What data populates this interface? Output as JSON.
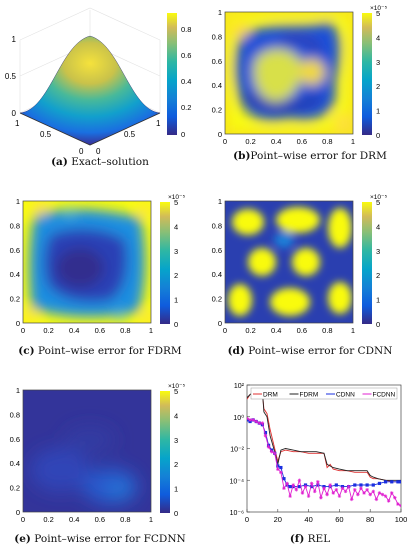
{
  "panels": [
    {
      "tag": "(a)",
      "caption": "Exact–solution",
      "colorbar_ticks": [
        "0",
        "0.2",
        "0.4",
        "0.6",
        "0.8"
      ],
      "z_ticks": [
        "0",
        "0.5",
        "1"
      ],
      "x_ticks": [
        "0",
        "0.5",
        "1"
      ],
      "y_ticks": [
        "0",
        "0.5",
        "1"
      ]
    },
    {
      "tag": "(b)",
      "caption": "Point–wise error for DRM",
      "exponent": "×10⁻⁵",
      "colorbar_ticks": [
        "0",
        "1",
        "2",
        "3",
        "4",
        "5"
      ],
      "axis_ticks": [
        "0",
        "0.2",
        "0.4",
        "0.6",
        "0.8",
        "1"
      ]
    },
    {
      "tag": "(c)",
      "caption": "Point–wise error for FDRM",
      "exponent": "×10⁻⁵",
      "colorbar_ticks": [
        "0",
        "1",
        "2",
        "3",
        "4",
        "5"
      ],
      "axis_ticks": [
        "0",
        "0.2",
        "0.4",
        "0.6",
        "0.8",
        "1"
      ]
    },
    {
      "tag": "(d)",
      "caption": "Point–wise error for CDNN",
      "exponent": "×10⁻⁵",
      "colorbar_ticks": [
        "0",
        "1",
        "2",
        "3",
        "4",
        "5"
      ],
      "axis_ticks": [
        "0",
        "0.2",
        "0.4",
        "0.6",
        "0.8",
        "1"
      ]
    },
    {
      "tag": "(e)",
      "caption": "Point–wise error for FCDNN",
      "exponent": "×10⁻⁵",
      "colorbar_ticks": [
        "0",
        "1",
        "2",
        "3",
        "4",
        "5"
      ],
      "axis_ticks": [
        "0",
        "0.2",
        "0.4",
        "0.6",
        "0.8",
        "1"
      ]
    },
    {
      "tag": "(f)",
      "caption": "REL"
    }
  ],
  "colors": {
    "low": "#352a87",
    "mid": "#21a4a6",
    "high": "#f9fb0e"
  },
  "chart_data": [
    {
      "type": "heatmap",
      "panel": "a",
      "description_values": "surface",
      "zlim": [
        0,
        1
      ]
    },
    {
      "type": "heatmap",
      "panel": "b",
      "xlim": [
        0,
        1
      ],
      "ylim": [
        0,
        1
      ],
      "clim": [
        0,
        5
      ]
    },
    {
      "type": "heatmap",
      "panel": "c",
      "xlim": [
        0,
        1
      ],
      "ylim": [
        0,
        1
      ],
      "clim": [
        0,
        5
      ]
    },
    {
      "type": "heatmap",
      "panel": "d",
      "xlim": [
        0,
        1
      ],
      "ylim": [
        0,
        1
      ],
      "clim": [
        0,
        5
      ]
    },
    {
      "type": "heatmap",
      "panel": "e",
      "xlim": [
        0,
        1
      ],
      "ylim": [
        0,
        1
      ],
      "clim": [
        0,
        5
      ]
    },
    {
      "type": "line",
      "panel": "f",
      "xlim": [
        0,
        100
      ],
      "ylim_log10": [
        -6,
        2
      ],
      "x_ticks": [
        "0",
        "20",
        "40",
        "60",
        "80",
        "100"
      ],
      "y_ticks": [
        "10⁻⁶",
        "10⁻⁴",
        "10⁻²",
        "10⁰",
        "10²"
      ],
      "legend": "top",
      "series": [
        {
          "name": "DRM",
          "color": "#e03030",
          "marker": "none",
          "x": [
            0,
            2,
            5,
            8,
            10,
            11,
            13,
            15,
            18,
            20,
            22,
            25,
            30,
            35,
            40,
            45,
            50,
            52,
            54,
            56,
            60,
            65,
            70,
            75,
            78,
            80,
            82,
            85,
            90,
            95,
            100
          ],
          "log10y": [
            1.1,
            1.4,
            1.5,
            1.6,
            1.5,
            0.5,
            0.2,
            -0.8,
            -2.0,
            -2.8,
            -2.2,
            -2.1,
            -2.2,
            -2.2,
            -2.3,
            -2.3,
            -2.3,
            -3.2,
            -3.0,
            -3.3,
            -3.4,
            -3.4,
            -3.5,
            -3.5,
            -3.5,
            -3.8,
            -3.9,
            -3.9,
            -4.0,
            -4.1,
            -4.1
          ]
        },
        {
          "name": "FDRM",
          "color": "#222222",
          "marker": "none",
          "x": [
            0,
            2,
            5,
            8,
            10,
            11,
            13,
            15,
            18,
            20,
            22,
            25,
            30,
            35,
            40,
            45,
            50,
            52,
            54,
            56,
            60,
            65,
            70,
            75,
            78,
            80,
            82,
            85,
            90,
            95,
            100
          ],
          "log10y": [
            1.2,
            1.4,
            1.6,
            1.7,
            1.6,
            0.3,
            0.0,
            -1.2,
            -2.2,
            -3.0,
            -2.1,
            -2.0,
            -2.1,
            -2.2,
            -2.2,
            -2.2,
            -2.3,
            -3.0,
            -3.1,
            -3.2,
            -3.3,
            -3.4,
            -3.4,
            -3.4,
            -3.4,
            -3.7,
            -3.8,
            -3.9,
            -4.0,
            -4.0,
            -4.0
          ]
        },
        {
          "name": "CDNN",
          "color": "#1a2fe0",
          "marker": "square",
          "x": [
            0,
            2,
            4,
            6,
            8,
            10,
            12,
            14,
            16,
            18,
            20,
            22,
            24,
            26,
            28,
            30,
            34,
            38,
            42,
            46,
            50,
            54,
            58,
            62,
            66,
            70,
            74,
            78,
            82,
            86,
            90,
            94,
            98,
            100
          ],
          "log10y": [
            -0.2,
            -0.3,
            -0.2,
            -0.3,
            -0.4,
            -0.5,
            -1.0,
            -1.8,
            -2.1,
            -2.3,
            -3.1,
            -3.2,
            -3.9,
            -4.3,
            -4.4,
            -4.4,
            -4.4,
            -4.3,
            -4.4,
            -4.3,
            -4.4,
            -4.4,
            -4.3,
            -4.4,
            -4.4,
            -4.3,
            -4.3,
            -4.3,
            -4.3,
            -4.2,
            -4.1,
            -4.1,
            -4.1,
            -4.1
          ]
        },
        {
          "name": "FCDNN",
          "color": "#e020d0",
          "marker": "star",
          "x": [
            0,
            2,
            4,
            6,
            8,
            10,
            12,
            14,
            16,
            18,
            20,
            22,
            24,
            26,
            28,
            30,
            32,
            34,
            36,
            38,
            40,
            42,
            44,
            46,
            48,
            50,
            52,
            54,
            56,
            58,
            60,
            62,
            64,
            66,
            68,
            70,
            72,
            74,
            76,
            78,
            80,
            82,
            84,
            86,
            88,
            90,
            92,
            94,
            96,
            98,
            100
          ],
          "log10y": [
            -0.1,
            -0.2,
            -0.2,
            -0.3,
            -0.4,
            -0.4,
            -1.2,
            -1.9,
            -2.2,
            -2.3,
            -3.3,
            -3.5,
            -4.5,
            -4.2,
            -5.0,
            -4.3,
            -4.6,
            -4.0,
            -4.8,
            -4.4,
            -5.0,
            -4.2,
            -4.7,
            -4.1,
            -5.1,
            -4.5,
            -4.9,
            -4.3,
            -4.8,
            -4.6,
            -5.0,
            -4.5,
            -4.7,
            -4.4,
            -5.2,
            -4.6,
            -4.9,
            -4.5,
            -4.8,
            -4.6,
            -4.9,
            -4.7,
            -5.2,
            -4.8,
            -4.9,
            -5.0,
            -5.3,
            -4.8,
            -5.1,
            -5.5,
            -5.6
          ]
        }
      ]
    }
  ]
}
